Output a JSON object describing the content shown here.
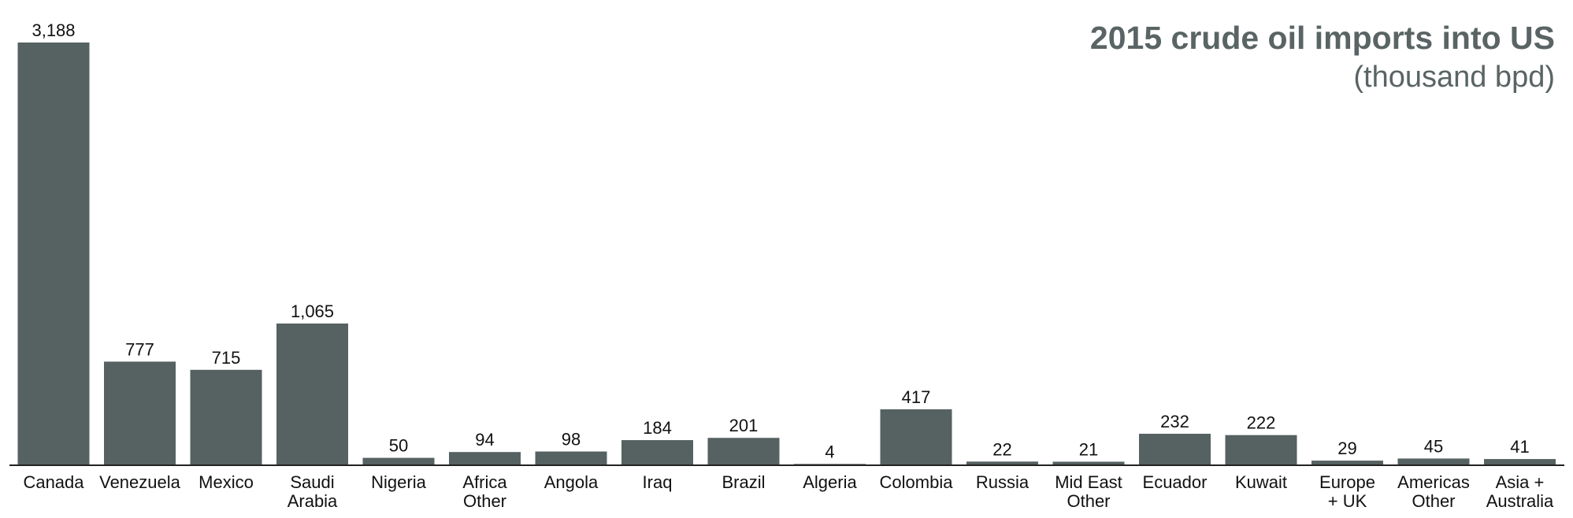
{
  "chart_data": {
    "type": "bar",
    "title": "2015 crude oil imports into US",
    "subtitle": "(thousand bpd)",
    "categories": [
      "Canada",
      "Venezuela",
      "Mexico",
      "Saudi\nArabia",
      "Nigeria",
      "Africa\nOther",
      "Angola",
      "Iraq",
      "Brazil",
      "Algeria",
      "Colombia",
      "Russia",
      "Mid East\nOther",
      "Ecuador",
      "Kuwait",
      "Europe\n+ UK",
      "Americas\nOther",
      "Asia +\nAustralia"
    ],
    "values": [
      3188,
      777,
      715,
      1065,
      50,
      94,
      98,
      184,
      201,
      4,
      417,
      22,
      21,
      232,
      222,
      29,
      45,
      41
    ],
    "value_labels": [
      "3,188",
      "777",
      "715",
      "1,065",
      "50",
      "94",
      "98",
      "184",
      "201",
      "4",
      "417",
      "22",
      "21",
      "232",
      "222",
      "29",
      "45",
      "41"
    ],
    "color": "#566161"
  }
}
